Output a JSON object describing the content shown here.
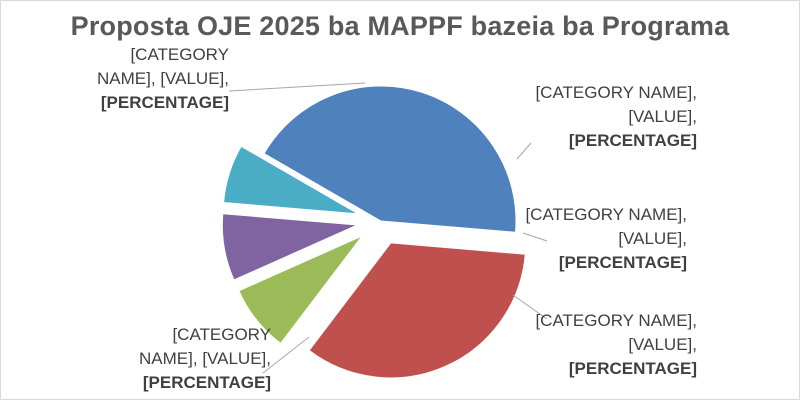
{
  "chart_data": {
    "type": "pie",
    "title": "Proposta OJE 2025 ba MAPPF bazeia ba Programa",
    "slices": [
      {
        "category_label": "[CATEGORY NAME]",
        "value_label": "[VALUE]",
        "percentage_label": "[PERCENTAGE]",
        "fraction": 0.43,
        "color": "#4f81bd",
        "exploded": false
      },
      {
        "category_label": "[CATEGORY NAME]",
        "value_label": "[VALUE]",
        "percentage_label": "[PERCENTAGE]",
        "fraction": 0.34,
        "color": "#c0504d",
        "exploded": true
      },
      {
        "category_label": "[CATEGORY NAME]",
        "value_label": "[VALUE]",
        "percentage_label": "[PERCENTAGE]",
        "fraction": 0.08,
        "color": "#9bbb59",
        "exploded": true
      },
      {
        "category_label": "[CATEGORY NAME]",
        "value_label": "[VALUE]",
        "percentage_label": "[PERCENTAGE]",
        "fraction": 0.08,
        "color": "#8064a2",
        "exploded": true
      },
      {
        "category_label": "[CATEGORY NAME]",
        "value_label": "[VALUE]",
        "percentage_label": "[PERCENTAGE]",
        "fraction": 0.07,
        "color": "#4bacc6",
        "exploded": true
      }
    ],
    "legend": false
  }
}
